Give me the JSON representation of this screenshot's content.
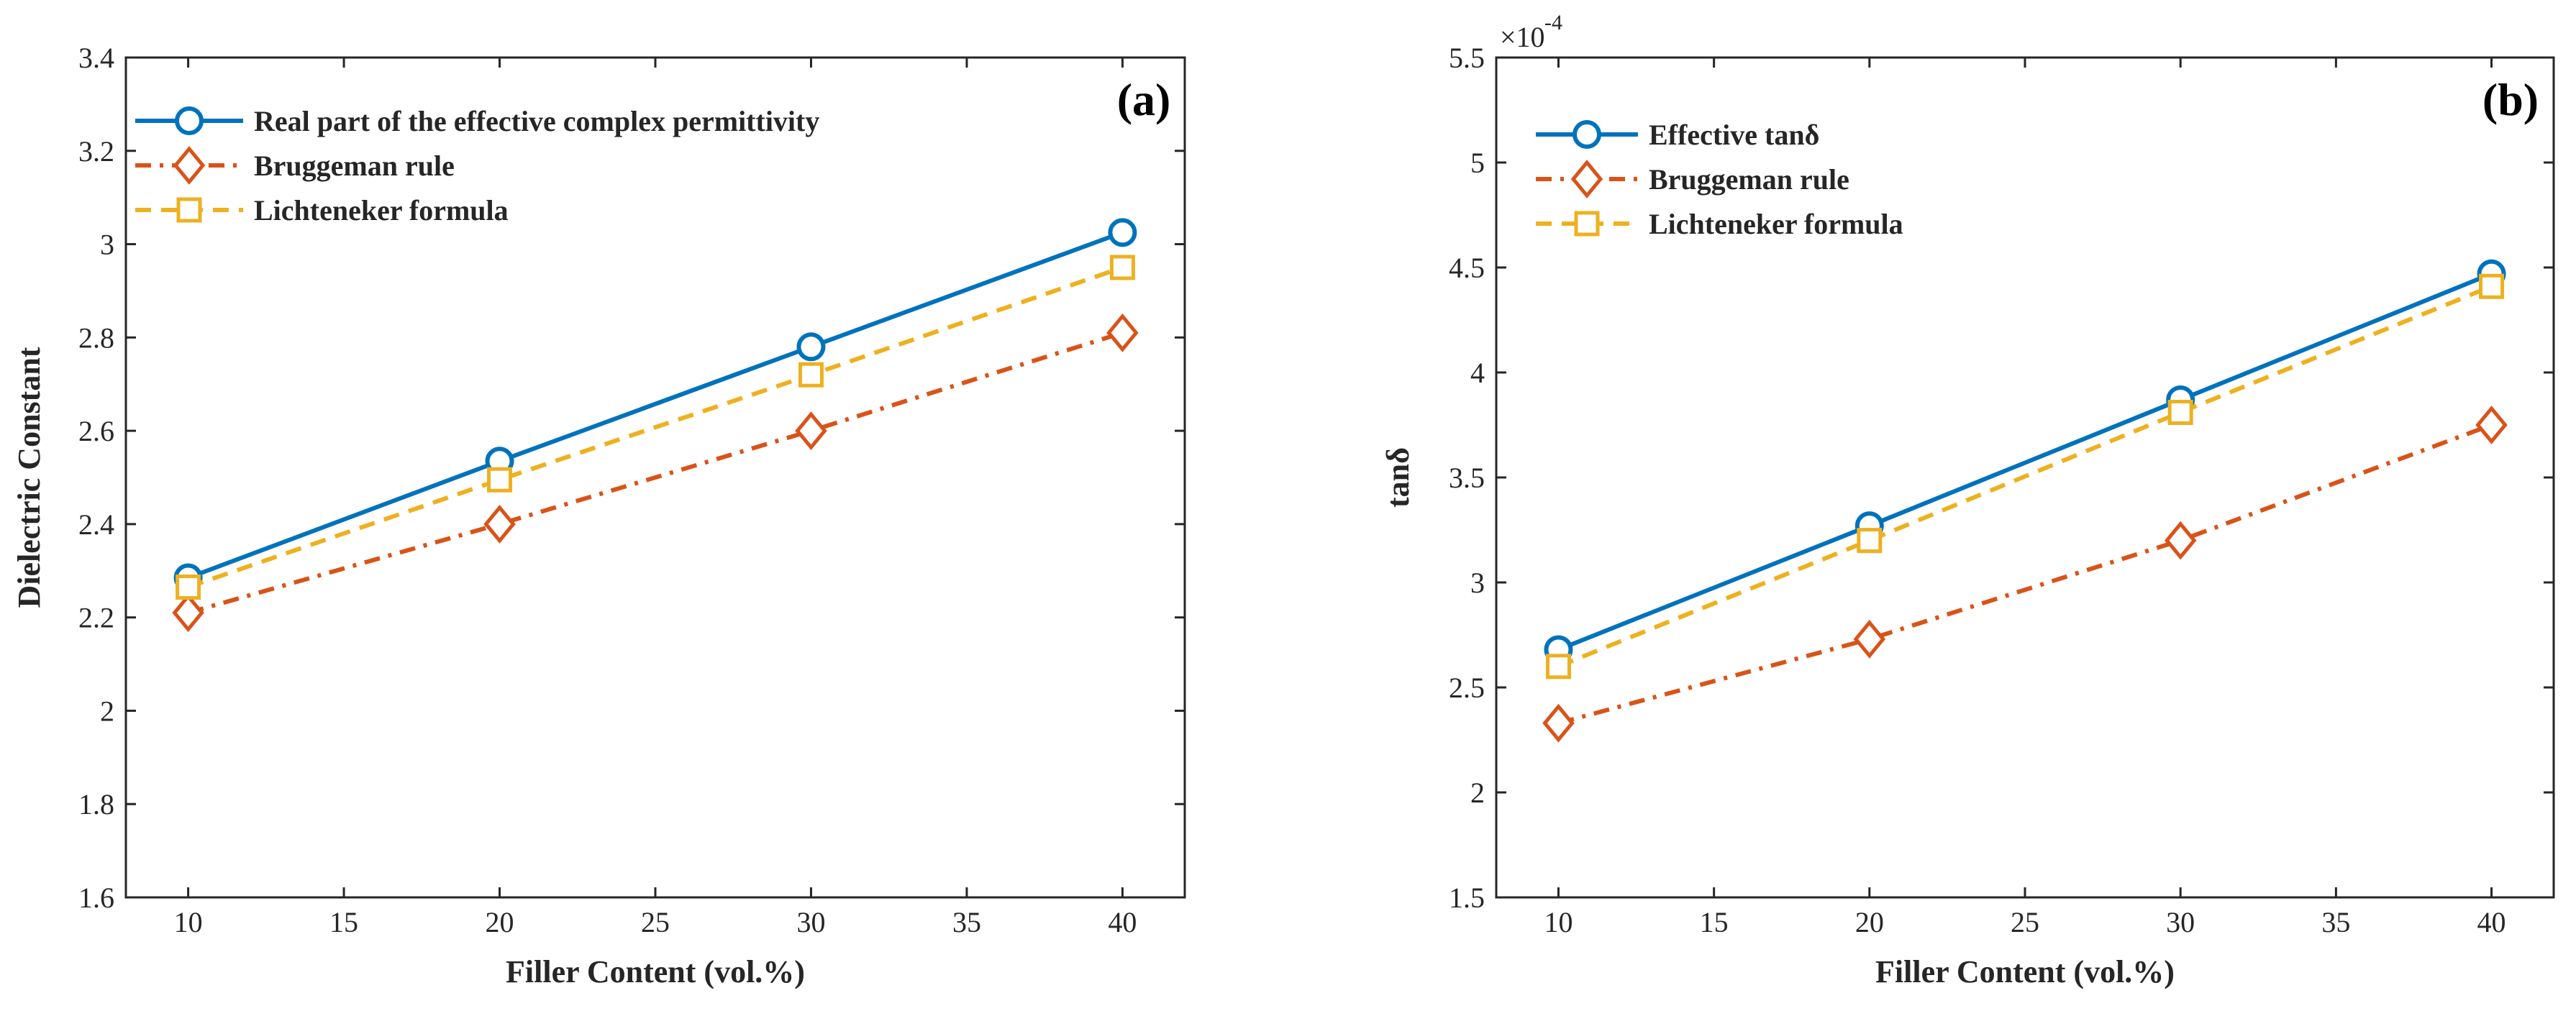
{
  "chart_data": [
    {
      "type": "line",
      "panel_label": "(a)",
      "xlabel": "Filler Content (vol.%)",
      "ylabel": "Dielectric Constant",
      "x": [
        10,
        20,
        30,
        40
      ],
      "xlim": [
        8,
        42
      ],
      "ylim": [
        1.6,
        3.4
      ],
      "xticks": [
        10,
        15,
        20,
        25,
        30,
        35,
        40
      ],
      "yticks": [
        1.6,
        1.8,
        2,
        2.2,
        2.4,
        2.6,
        2.8,
        3,
        3.2,
        3.4
      ],
      "ytick_labels": [
        "1.6",
        "1.8",
        "2",
        "2.2",
        "2.4",
        "2.6",
        "2.8",
        "3",
        "3.2",
        "3.4"
      ],
      "legend_position": "top-left",
      "series": [
        {
          "name": "Real part of the effective complex permittivity",
          "values": [
            2.285,
            2.535,
            2.78,
            3.025
          ],
          "color": "#0072BD",
          "marker": "circle",
          "dash": "solid"
        },
        {
          "name": "Bruggeman rule",
          "values": [
            2.21,
            2.4,
            2.6,
            2.81
          ],
          "color": "#D95319",
          "marker": "diamond",
          "dash": "dashdot"
        },
        {
          "name": "Lichteneker formula",
          "values": [
            2.265,
            2.495,
            2.72,
            2.95
          ],
          "color": "#EDB120",
          "marker": "square",
          "dash": "dashed"
        }
      ]
    },
    {
      "type": "line",
      "panel_label": "(b)",
      "xlabel": "Filler Content (vol.%)",
      "ylabel": "tanδ",
      "exponent_base": "×10",
      "exponent_power": "-4",
      "x": [
        10,
        20,
        30,
        40
      ],
      "xlim": [
        8,
        42
      ],
      "ylim": [
        1.5,
        5.5
      ],
      "xticks": [
        10,
        15,
        20,
        25,
        30,
        35,
        40
      ],
      "yticks": [
        1.5,
        2,
        2.5,
        3,
        3.5,
        4,
        4.5,
        5,
        5.5
      ],
      "ytick_labels": [
        "1.5",
        "2",
        "2.5",
        "3",
        "3.5",
        "4",
        "4.5",
        "5",
        "5.5"
      ],
      "legend_position": "top-left",
      "series": [
        {
          "name": "Effective tanδ",
          "values": [
            2.68,
            3.27,
            3.87,
            4.47
          ],
          "color": "#0072BD",
          "marker": "circle",
          "dash": "solid"
        },
        {
          "name": "Bruggeman rule",
          "values": [
            2.33,
            2.73,
            3.2,
            3.75
          ],
          "color": "#D95319",
          "marker": "diamond",
          "dash": "dashdot"
        },
        {
          "name": "Lichteneker formula",
          "values": [
            2.6,
            3.2,
            3.81,
            4.41
          ],
          "color": "#EDB120",
          "marker": "square",
          "dash": "dashed"
        }
      ]
    }
  ]
}
